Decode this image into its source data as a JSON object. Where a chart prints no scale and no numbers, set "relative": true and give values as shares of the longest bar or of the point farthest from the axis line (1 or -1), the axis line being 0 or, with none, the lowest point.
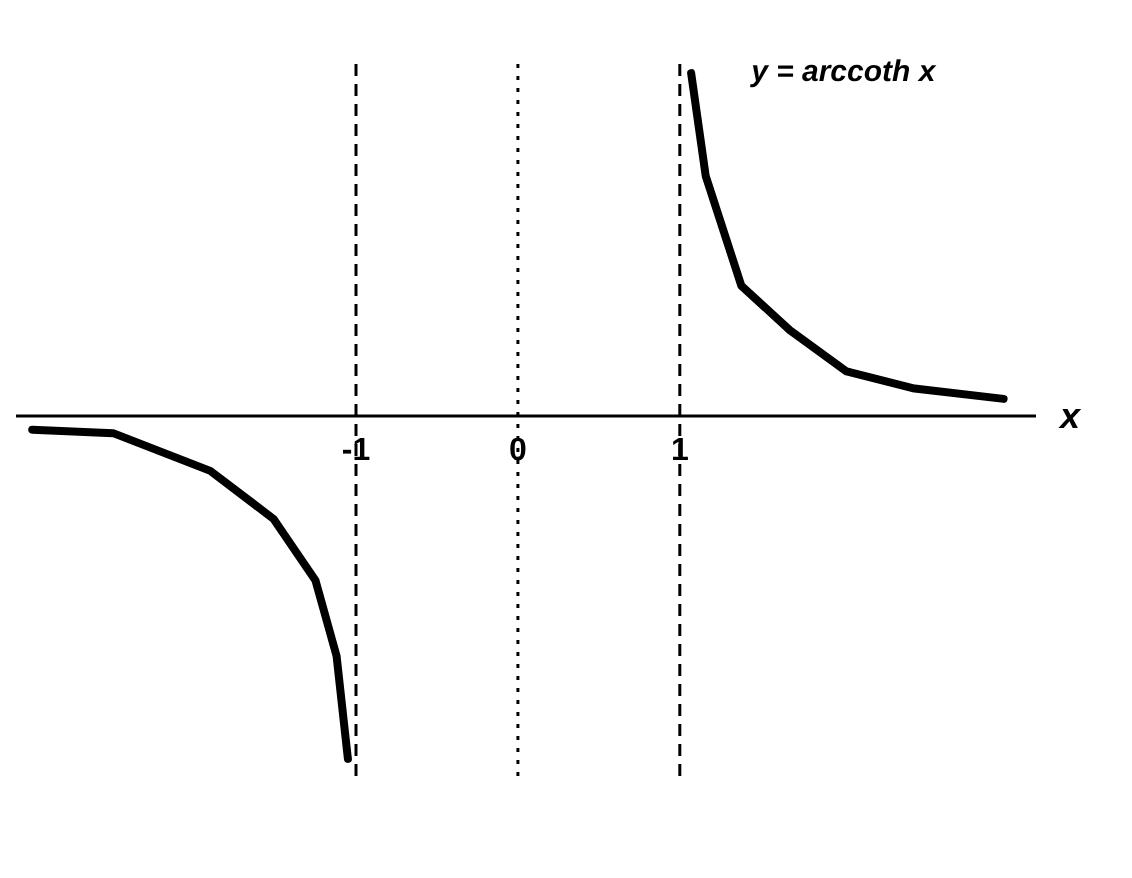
{
  "chart_data": {
    "type": "line",
    "relative": true,
    "xlabel": "x",
    "xlim": [
      -3.1,
      3.2
    ],
    "xticks": [
      -1,
      0,
      1
    ],
    "grid": false,
    "legend": false,
    "marker": "none",
    "line_style": "solid",
    "series": [
      {
        "color": "#000000",
        "x": [
          -3.0,
          -2.5,
          -1.9,
          -1.51,
          -1.25,
          -1.12,
          -1.05
        ],
        "values": [
          -0.04,
          -0.05,
          -0.16,
          -0.3,
          -0.48,
          -0.7,
          -1.0
        ]
      },
      {
        "name": "y = arccoth x",
        "color": "#000000",
        "x": [
          1.07,
          1.16,
          1.38,
          1.68,
          2.03,
          2.45,
          3.0
        ],
        "values": [
          1.0,
          0.7,
          0.38,
          0.25,
          0.13,
          0.08,
          0.05
        ]
      }
    ],
    "ref_lines": [
      {
        "axis": "x",
        "value": -1,
        "line_style": "dashed"
      },
      {
        "axis": "x",
        "value": 0,
        "line_style": "dotted"
      },
      {
        "axis": "x",
        "value": 1,
        "line_style": "dashed"
      }
    ]
  }
}
